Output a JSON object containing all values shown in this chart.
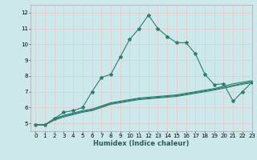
{
  "title": "",
  "xlabel": "Humidex (Indice chaleur)",
  "xlim": [
    -0.5,
    23
  ],
  "ylim": [
    4.5,
    12.5
  ],
  "yticks": [
    5,
    6,
    7,
    8,
    9,
    10,
    11,
    12
  ],
  "xticks": [
    0,
    1,
    2,
    3,
    4,
    5,
    6,
    7,
    8,
    9,
    10,
    11,
    12,
    13,
    14,
    15,
    16,
    17,
    18,
    19,
    20,
    21,
    22,
    23
  ],
  "background_color": "#cde8eb",
  "grid_color": "#e8c8c8",
  "line_color": "#2e7d6e",
  "series0": [
    4.9,
    4.9,
    5.3,
    5.7,
    5.8,
    6.0,
    7.0,
    7.9,
    8.1,
    9.2,
    10.3,
    11.0,
    11.85,
    11.0,
    10.5,
    10.1,
    10.1,
    9.4,
    8.1,
    7.45,
    7.5,
    6.4,
    7.0,
    7.6
  ],
  "series1": [
    4.9,
    4.9,
    5.3,
    5.5,
    5.65,
    5.8,
    5.9,
    6.1,
    6.3,
    6.4,
    6.5,
    6.6,
    6.65,
    6.7,
    6.75,
    6.8,
    6.9,
    7.0,
    7.1,
    7.2,
    7.35,
    7.5,
    7.6,
    7.7
  ],
  "series2": [
    4.9,
    4.9,
    5.25,
    5.45,
    5.6,
    5.75,
    5.85,
    6.05,
    6.25,
    6.35,
    6.45,
    6.55,
    6.6,
    6.65,
    6.7,
    6.75,
    6.85,
    6.95,
    7.05,
    7.15,
    7.28,
    7.4,
    7.52,
    7.62
  ],
  "series3": [
    4.9,
    4.9,
    5.2,
    5.4,
    5.55,
    5.7,
    5.8,
    6.0,
    6.2,
    6.3,
    6.4,
    6.5,
    6.55,
    6.6,
    6.65,
    6.7,
    6.8,
    6.9,
    7.0,
    7.1,
    7.22,
    7.35,
    7.47,
    7.57
  ],
  "marker": "*",
  "markersize": 3,
  "linewidth": 0.8,
  "tick_fontsize": 5,
  "xlabel_fontsize": 6,
  "xlabel_fontweight": "bold"
}
